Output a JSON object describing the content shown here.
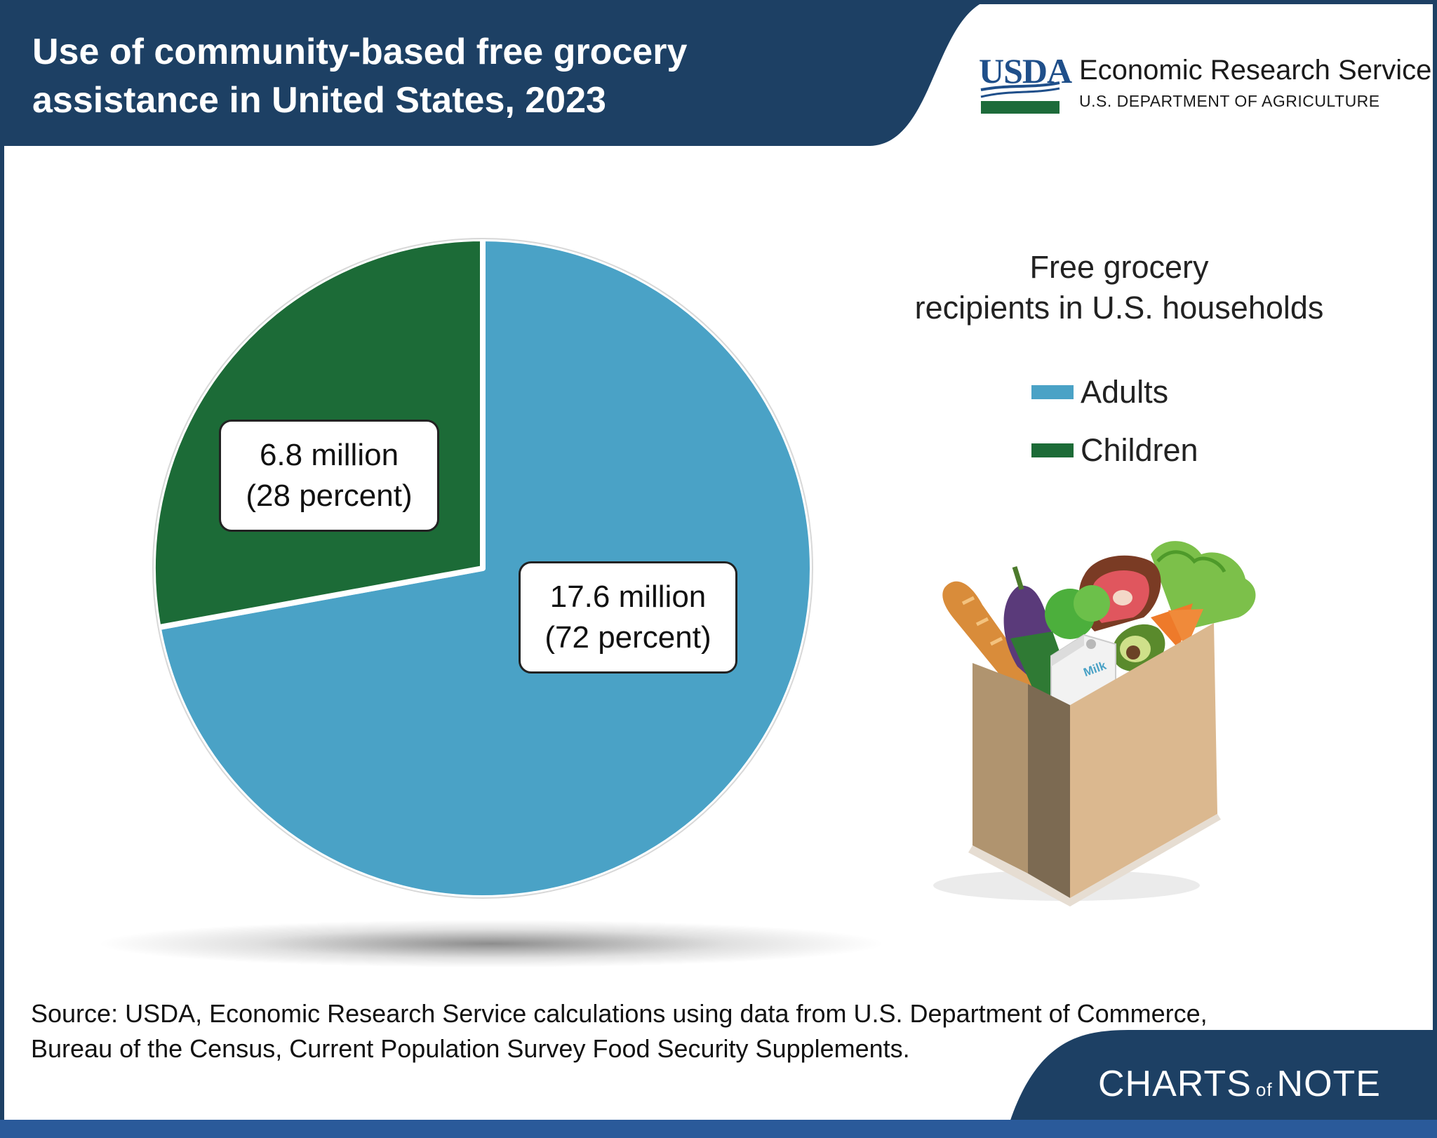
{
  "header": {
    "title_line1": "Use of community-based free grocery",
    "title_line2": "assistance in United States, 2023",
    "usda_logo_text": "USDA",
    "agency_name": "Economic Research Service",
    "department": "U.S. DEPARTMENT OF AGRICULTURE"
  },
  "colors": {
    "navy": "#1d4064",
    "adults": "#4aa2c6",
    "children": "#1c6b37",
    "usda_green": "#1d6b3a",
    "usda_blue": "#1f4f8a"
  },
  "chart_data": {
    "type": "pie",
    "title": "Free grocery recipients in U.S. households",
    "legend_position": "right",
    "slices": [
      {
        "name": "Adults",
        "value": 17.6,
        "percent": 72,
        "value_label": "17.6 million",
        "percent_label": "(72 percent)",
        "color": "#4aa2c6"
      },
      {
        "name": "Children",
        "value": 6.8,
        "percent": 28,
        "value_label": "6.8 million",
        "percent_label": "(28 percent)",
        "color": "#1c6b37"
      }
    ]
  },
  "legend": {
    "title_line1": "Free grocery",
    "title_line2": "recipients in U.S. households",
    "items": [
      "Adults",
      "Children"
    ]
  },
  "illustration": {
    "icon": "grocery-bag-icon",
    "milk_label": "Milk"
  },
  "source": {
    "line1": "Source: USDA, Economic Research Service calculations using data from U.S. Department of Commerce,",
    "line2": "Bureau of the Census, Current Population Survey Food Security Supplements."
  },
  "footer": {
    "brand_part1": "CHARTS",
    "brand_of": "of",
    "brand_part2": "NOTE"
  }
}
